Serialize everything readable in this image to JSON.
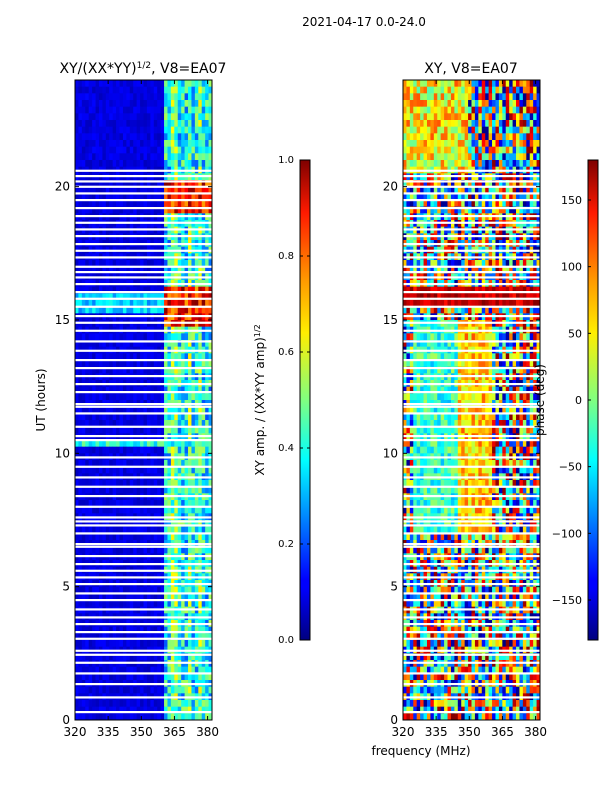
{
  "chart_data": {
    "suptitle": "2021-04-17 0.0-24.0",
    "shared_xlabel": "frequency (MHz)",
    "panels": [
      {
        "type": "heatmap",
        "title": "XY/(XX*YY)",
        "title_exp": "1/2",
        "title_suffix": ", V8=EA07",
        "ylabel": "UT (hours)",
        "xlim": [
          320,
          382
        ],
        "ylim": [
          0,
          24
        ],
        "xticks": [
          320,
          335,
          350,
          365,
          380
        ],
        "yticks": [
          0,
          5,
          10,
          15,
          20
        ],
        "colorbar": {
          "label": "XY amp. / (XX*YY amp)",
          "label_exp": "1/2",
          "range": [
            0.0,
            1.0
          ],
          "ticks": [
            "0.0",
            "0.2",
            "0.4",
            "0.6",
            "0.8",
            "1.0"
          ],
          "colormap": "jet"
        }
      },
      {
        "type": "heatmap",
        "title": "XY, V8=EA07",
        "xlim": [
          320,
          382
        ],
        "ylim": [
          0,
          24
        ],
        "xticks": [
          320,
          335,
          350,
          365,
          380
        ],
        "yticks": [
          0,
          5,
          10,
          15,
          20
        ],
        "colorbar": {
          "label": "phase (deg)",
          "range": [
            -180,
            180
          ],
          "ticks": [
            "−150",
            "−100",
            "−50",
            "0",
            "50",
            "100",
            "150"
          ],
          "colormap": "jet"
        }
      }
    ],
    "flagged_ut_hours": [
      0.3,
      0.85,
      1.35,
      1.75,
      2.15,
      2.45,
      2.6,
      3.05,
      3.3,
      3.6,
      3.85,
      4.15,
      4.5,
      4.75,
      5.1,
      5.35,
      5.6,
      5.85,
      6.15,
      6.5,
      6.6,
      7.0,
      7.3,
      7.45,
      7.6,
      8.0,
      8.4,
      8.75,
      9.1,
      9.5,
      9.85,
      10.5,
      10.65,
      11.0,
      11.5,
      11.75,
      11.85,
      12.3,
      12.6,
      12.9,
      13.2,
      13.5,
      13.85,
      14.2,
      14.6,
      14.9,
      15.15,
      15.5,
      15.8,
      16.05,
      16.35,
      16.6,
      16.8,
      17.0,
      17.35,
      17.6,
      17.85,
      18.15,
      18.4,
      18.65,
      18.9,
      19.2,
      19.5,
      19.75,
      20.0,
      20.2,
      20.4,
      20.6
    ]
  }
}
